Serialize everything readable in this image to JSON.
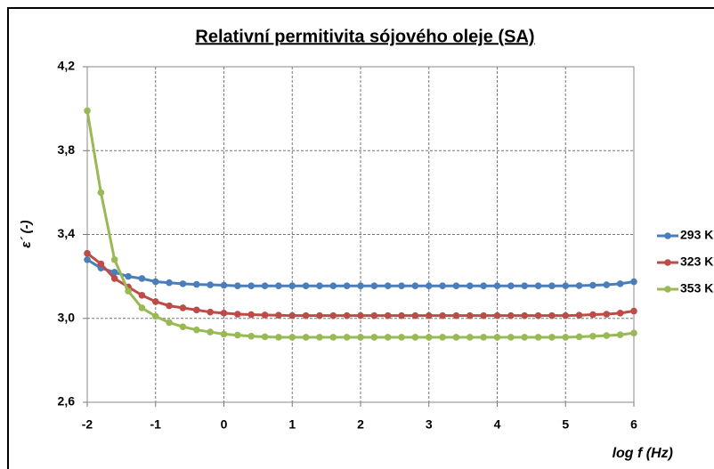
{
  "chart_data": {
    "type": "line",
    "title": "Relativní permitivita sójového oleje (SA)",
    "x_label": "log f (Hz)",
    "y_label": "ε´ (-)",
    "x": [
      -2,
      -1.8,
      -1.6,
      -1.4,
      -1.2,
      -1,
      -0.8,
      -0.6,
      -0.4,
      -0.2,
      0,
      0.2,
      0.4,
      0.6,
      0.8,
      1,
      1.2,
      1.4,
      1.6,
      1.8,
      2,
      2.2,
      2.4,
      2.6,
      2.8,
      3,
      3.2,
      3.4,
      3.6,
      3.8,
      4,
      4.2,
      4.4,
      4.6,
      4.8,
      5,
      5.2,
      5.4,
      5.6,
      5.8,
      6
    ],
    "series": [
      {
        "name": "293 K",
        "color": "#4a7ebb",
        "values": [
          3.28,
          3.24,
          3.22,
          3.2,
          3.19,
          3.175,
          3.17,
          3.165,
          3.162,
          3.16,
          3.158,
          3.155,
          3.155,
          3.155,
          3.155,
          3.155,
          3.155,
          3.155,
          3.155,
          3.155,
          3.155,
          3.155,
          3.155,
          3.155,
          3.155,
          3.155,
          3.155,
          3.155,
          3.155,
          3.155,
          3.155,
          3.155,
          3.155,
          3.155,
          3.155,
          3.155,
          3.156,
          3.158,
          3.16,
          3.165,
          3.175
        ]
      },
      {
        "name": "323 K",
        "color": "#be4b48",
        "values": [
          3.31,
          3.26,
          3.19,
          3.15,
          3.11,
          3.08,
          3.06,
          3.05,
          3.04,
          3.03,
          3.025,
          3.02,
          3.018,
          3.016,
          3.015,
          3.013,
          3.013,
          3.013,
          3.013,
          3.013,
          3.013,
          3.013,
          3.013,
          3.013,
          3.013,
          3.013,
          3.013,
          3.013,
          3.013,
          3.013,
          3.013,
          3.013,
          3.013,
          3.013,
          3.013,
          3.013,
          3.015,
          3.018,
          3.02,
          3.025,
          3.035
        ]
      },
      {
        "name": "353 K",
        "color": "#98b954",
        "values": [
          3.99,
          3.6,
          3.28,
          3.13,
          3.05,
          3.01,
          2.98,
          2.96,
          2.945,
          2.935,
          2.925,
          2.92,
          2.915,
          2.912,
          2.91,
          2.91,
          2.91,
          2.91,
          2.91,
          2.91,
          2.91,
          2.91,
          2.91,
          2.91,
          2.91,
          2.91,
          2.91,
          2.91,
          2.91,
          2.91,
          2.91,
          2.91,
          2.91,
          2.91,
          2.91,
          2.91,
          2.912,
          2.915,
          2.918,
          2.922,
          2.93
        ]
      }
    ],
    "xlim": [
      -2,
      6
    ],
    "xticks": [
      -2,
      -1,
      0,
      1,
      2,
      3,
      4,
      5,
      6
    ],
    "ylim": [
      2.6,
      4.2
    ],
    "yticks": [
      {
        "value": 2.6,
        "label": "2,6"
      },
      {
        "value": 3.0,
        "label": "3,0"
      },
      {
        "value": 3.4,
        "label": "3,4"
      },
      {
        "value": 3.8,
        "label": "3,8"
      },
      {
        "value": 4.2,
        "label": "4,2"
      }
    ],
    "grid": true,
    "legend": "right"
  }
}
